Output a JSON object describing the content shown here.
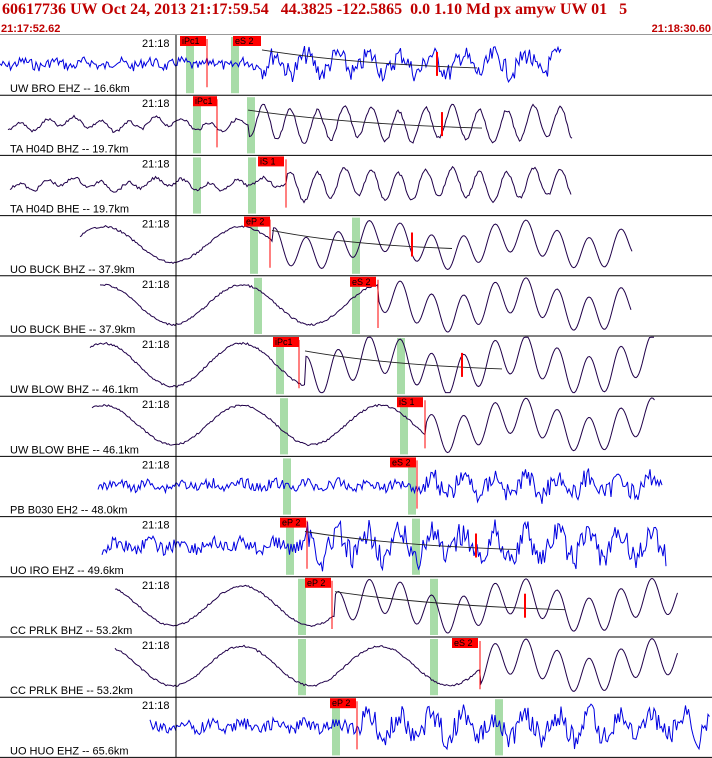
{
  "header": {
    "title": "60617736 UW Oct 24, 2013 21:17:59.54   44.3825 -122.5865  0.0 1.10 Md px amyw UW 01   5",
    "time_start": "21:17:52.62",
    "time_end": "21:18:30.60"
  },
  "tick_label": "21:18",
  "colors": {
    "blue_trace": "#0000e0",
    "dark_trace": "#20004a",
    "pick_box": "#ff0000",
    "highlight": "#a8dca8"
  },
  "channels": [
    {
      "label": "UW BRO EHZ -- 16.6km",
      "color": "blue",
      "picks": [
        {
          "text": "iPc1"
        },
        {
          "text": "eS 2"
        }
      ]
    },
    {
      "label": "TA H04D BHZ -- 19.7km",
      "color": "dark",
      "picks": [
        {
          "text": "iPc1"
        }
      ]
    },
    {
      "label": "TA H04D BHE -- 19.7km",
      "color": "dark",
      "picks": [
        {
          "text": "iS 1"
        }
      ]
    },
    {
      "label": "UO BUCK BHZ -- 37.9km",
      "color": "dark",
      "picks": [
        {
          "text": "eP 2"
        }
      ]
    },
    {
      "label": "UO BUCK BHE -- 37.9km",
      "color": "dark",
      "picks": [
        {
          "text": "eS 2"
        }
      ]
    },
    {
      "label": "UW BLOW BHZ -- 46.1km",
      "color": "dark",
      "picks": [
        {
          "text": "iPc1"
        }
      ]
    },
    {
      "label": "UW BLOW BHE -- 46.1km",
      "color": "dark",
      "picks": [
        {
          "text": "iS 1"
        }
      ]
    },
    {
      "label": "PB B030 EH2 -- 48.0km",
      "color": "blue",
      "picks": [
        {
          "text": "eS 2"
        }
      ]
    },
    {
      "label": "UO IRO EHZ -- 49.6km",
      "color": "blue",
      "picks": [
        {
          "text": "eP 2"
        }
      ]
    },
    {
      "label": "CC PRLK BHZ -- 53.2km",
      "color": "dark",
      "picks": [
        {
          "text": "eP 2"
        }
      ]
    },
    {
      "label": "CC PRLK BHE -- 53.2km",
      "color": "dark",
      "picks": [
        {
          "text": "eS 2"
        }
      ]
    },
    {
      "label": "UO HUO EHZ -- 65.6km",
      "color": "blue",
      "picks": [
        {
          "text": "eP 2"
        }
      ]
    }
  ]
}
